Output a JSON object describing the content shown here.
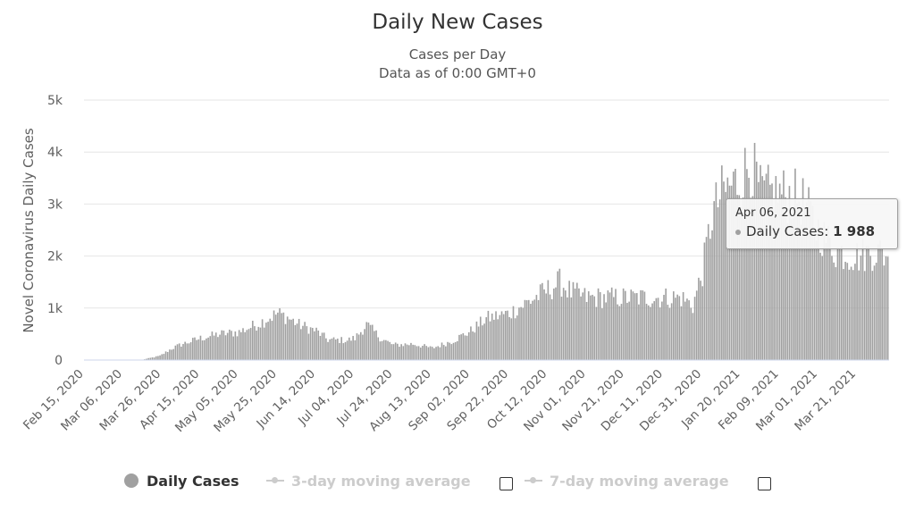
{
  "chart_data": {
    "type": "bar",
    "title": "Daily New Cases",
    "subtitle": "Cases per Day",
    "subtitle2": "Data as of 0:00 GMT+0",
    "ylabel": "Novel Coronavirus Daily Cases",
    "xlabel": "",
    "ylim": [
      0,
      5000
    ],
    "y_ticks": [
      "0",
      "1k",
      "2k",
      "3k",
      "4k",
      "5k"
    ],
    "x_start": "2020-02-15",
    "x_end": "2021-04-06",
    "x_ticks": [
      "Feb 15, 2020",
      "Mar 06, 2020",
      "Mar 26, 2020",
      "Apr 15, 2020",
      "May 05, 2020",
      "May 25, 2020",
      "Jun 14, 2020",
      "Jul 04, 2020",
      "Jul 24, 2020",
      "Aug 13, 2020",
      "Sep 02, 2020",
      "Sep 22, 2020",
      "Oct 12, 2020",
      "Nov 01, 2020",
      "Nov 21, 2020",
      "Dec 11, 2020",
      "Dec 31, 2020",
      "Jan 20, 2021",
      "Feb 09, 2021",
      "Mar 01, 2021",
      "Mar 21, 2021"
    ],
    "grid": true,
    "series": [
      {
        "name": "Daily Cases",
        "color": "#a0a0a0",
        "anchors": [
          [
            "2020-02-15",
            0
          ],
          [
            "2020-03-15",
            0
          ],
          [
            "2020-03-20",
            40
          ],
          [
            "2020-03-25",
            80
          ],
          [
            "2020-03-31",
            220
          ],
          [
            "2020-04-05",
            300
          ],
          [
            "2020-04-15",
            420
          ],
          [
            "2020-04-25",
            500
          ],
          [
            "2020-05-05",
            540
          ],
          [
            "2020-05-15",
            700
          ],
          [
            "2020-05-25",
            900
          ],
          [
            "2020-05-30",
            820
          ],
          [
            "2020-06-05",
            680
          ],
          [
            "2020-06-14",
            560
          ],
          [
            "2020-06-20",
            390
          ],
          [
            "2020-06-30",
            380
          ],
          [
            "2020-07-04",
            420
          ],
          [
            "2020-07-10",
            680
          ],
          [
            "2020-07-18",
            400
          ],
          [
            "2020-07-24",
            290
          ],
          [
            "2020-08-03",
            310
          ],
          [
            "2020-08-13",
            230
          ],
          [
            "2020-08-23",
            360
          ],
          [
            "2020-09-02",
            560
          ],
          [
            "2020-09-10",
            800
          ],
          [
            "2020-09-22",
            900
          ],
          [
            "2020-10-01",
            1100
          ],
          [
            "2020-10-12",
            1350
          ],
          [
            "2020-10-18",
            1500
          ],
          [
            "2020-10-24",
            1300
          ],
          [
            "2020-11-01",
            1200
          ],
          [
            "2020-11-21",
            1200
          ],
          [
            "2020-12-11",
            1200
          ],
          [
            "2020-12-20",
            1200
          ],
          [
            "2020-12-26",
            1050
          ],
          [
            "2020-12-31",
            1700
          ],
          [
            "2021-01-05",
            2800
          ],
          [
            "2021-01-10",
            3200
          ],
          [
            "2021-01-20",
            3500
          ],
          [
            "2021-01-25",
            3800
          ],
          [
            "2021-01-30",
            3200
          ],
          [
            "2021-02-09",
            3200
          ],
          [
            "2021-02-20",
            3100
          ],
          [
            "2021-03-01",
            2500
          ],
          [
            "2021-03-10",
            2100
          ],
          [
            "2021-03-21",
            2000
          ],
          [
            "2021-03-31",
            2100
          ],
          [
            "2021-04-06",
            1988
          ]
        ]
      },
      {
        "name": "3-day moving average",
        "visible": false
      },
      {
        "name": "7-day moving average",
        "visible": false
      }
    ]
  },
  "legend": {
    "daily": "Daily Cases",
    "avg3": "3-day moving average",
    "avg7": "7-day moving average"
  },
  "tooltip": {
    "date": "Apr 06, 2021",
    "label": "Daily Cases:",
    "value": "1 988"
  }
}
